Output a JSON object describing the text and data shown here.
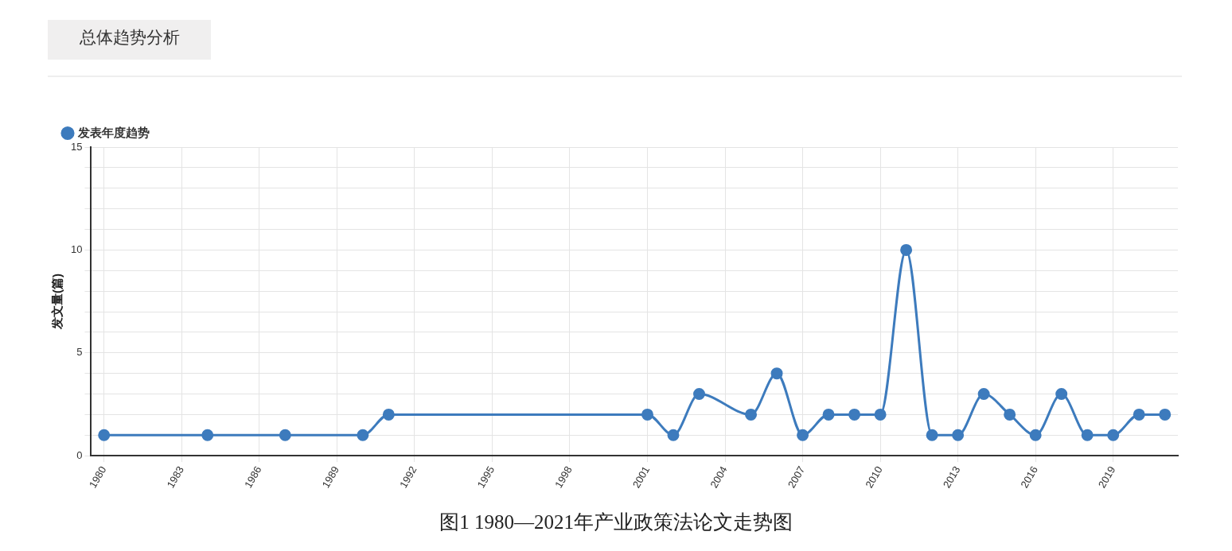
{
  "chart_data": {
    "type": "line",
    "title": "总体趋势分析",
    "ylabel": "发文量(篇)",
    "annotations": [
      "图1 1980—2021年产业政策法论文走势图"
    ],
    "x": [
      1980,
      1984,
      1987,
      1990,
      1991,
      2001,
      2002,
      2003,
      2005,
      2006,
      2007,
      2008,
      2009,
      2010,
      2011,
      2012,
      2013,
      2014,
      2015,
      2016,
      2017,
      2018,
      2019,
      2020,
      2021
    ],
    "series": [
      {
        "name": "发表年度趋势",
        "color": "#3d7bbd",
        "values": [
          1,
          1,
          1,
          1,
          2,
          2,
          1,
          3,
          2,
          4,
          1,
          2,
          2,
          2,
          10,
          1,
          1,
          3,
          2,
          1,
          3,
          1,
          1,
          2,
          2
        ]
      }
    ],
    "xlim": [
      1979.5,
      2021.5
    ],
    "xticks": [
      1980,
      1983,
      1986,
      1989,
      1992,
      1995,
      1998,
      2001,
      2004,
      2007,
      2010,
      2013,
      2016,
      2019
    ],
    "ylim": [
      0,
      15
    ],
    "yticks": [
      0,
      {
        "value": 1,
        "label": null
      },
      {
        "value": 2,
        "label": null
      },
      {
        "value": 3,
        "label": null
      },
      {
        "value": 4,
        "label": null
      },
      5,
      {
        "value": 6,
        "label": null
      },
      {
        "value": 7,
        "label": null
      },
      {
        "value": 8,
        "label": null
      },
      {
        "value": 9,
        "label": null
      },
      10,
      {
        "value": 11,
        "label": null
      },
      {
        "value": 12,
        "label": null
      },
      {
        "value": 13,
        "label": null
      },
      {
        "value": 14,
        "label": null
      },
      15
    ],
    "grid": true,
    "legend": "top left",
    "marker": "circle",
    "line_style": "solid"
  }
}
